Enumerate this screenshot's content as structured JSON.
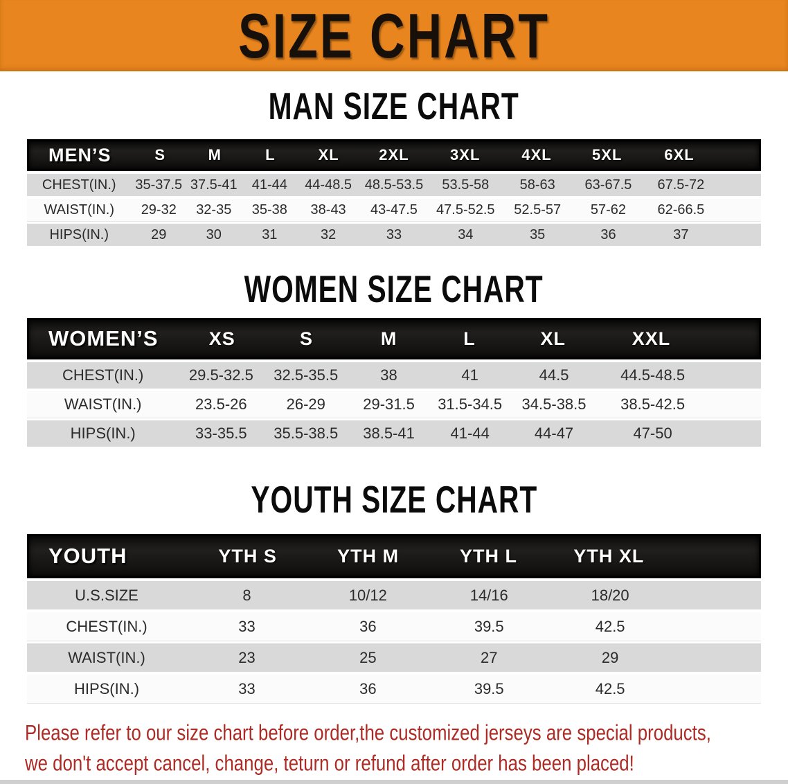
{
  "banner": {
    "title": "SIZE CHART",
    "bg_color": "#E8851E",
    "text_color": "#17100A"
  },
  "sections": [
    {
      "heading": "MAN SIZE CHART",
      "table": {
        "header_label": "MEN’S",
        "columns": [
          "S",
          "M",
          "L",
          "XL",
          "2XL",
          "3XL",
          "4XL",
          "5XL",
          "6XL"
        ],
        "rows": [
          {
            "label": "CHEST(IN.)",
            "values": [
              "35-37.5",
              "37.5-41",
              "41-44",
              "44-48.5",
              "48.5-53.5",
              "53.5-58",
              "58-63",
              "63-67.5",
              "67.5-72"
            ]
          },
          {
            "label": "WAIST(IN.)",
            "values": [
              "29-32",
              "32-35",
              "35-38",
              "38-43",
              "43-47.5",
              "47.5-52.5",
              "52.5-57",
              "57-62",
              "62-66.5"
            ]
          },
          {
            "label": "HIPS(IN.)",
            "values": [
              "29",
              "30",
              "31",
              "32",
              "33",
              "34",
              "35",
              "36",
              "37"
            ]
          }
        ]
      }
    },
    {
      "heading": "WOMEN SIZE CHART",
      "table": {
        "header_label": "WOMEN’S",
        "columns": [
          "XS",
          "S",
          "M",
          "L",
          "XL",
          "XXL"
        ],
        "rows": [
          {
            "label": "CHEST(IN.)",
            "values": [
              "29.5-32.5",
              "32.5-35.5",
              "38",
              "41",
              "44.5",
              "44.5-48.5"
            ]
          },
          {
            "label": "WAIST(IN.)",
            "values": [
              "23.5-26",
              "26-29",
              "29-31.5",
              "31.5-34.5",
              "34.5-38.5",
              "38.5-42.5"
            ]
          },
          {
            "label": "HIPS(IN.)",
            "values": [
              "33-35.5",
              "35.5-38.5",
              "38.5-41",
              "41-44",
              "44-47",
              "47-50"
            ]
          }
        ]
      }
    },
    {
      "heading": "YOUTH SIZE CHART",
      "table": {
        "header_label": "YOUTH",
        "columns": [
          "YTH S",
          "YTH M",
          "YTH L",
          "YTH XL"
        ],
        "rows": [
          {
            "label": "U.S.SIZE",
            "values": [
              "8",
              "10/12",
              "14/16",
              "18/20"
            ]
          },
          {
            "label": "CHEST(IN.)",
            "values": [
              "33",
              "36",
              "39.5",
              "42.5"
            ]
          },
          {
            "label": "WAIST(IN.)",
            "values": [
              "23",
              "25",
              "27",
              "29"
            ]
          },
          {
            "label": "HIPS(IN.)",
            "values": [
              "33",
              "36",
              "39.5",
              "42.5"
            ]
          }
        ]
      }
    }
  ],
  "disclaimer": {
    "line1": "Please refer to our size chart before order,the customized jerseys are special products,",
    "line2": "we don't accept cancel, change, teturn or refund after order has been placed!",
    "text_color": "#AD2B25"
  }
}
